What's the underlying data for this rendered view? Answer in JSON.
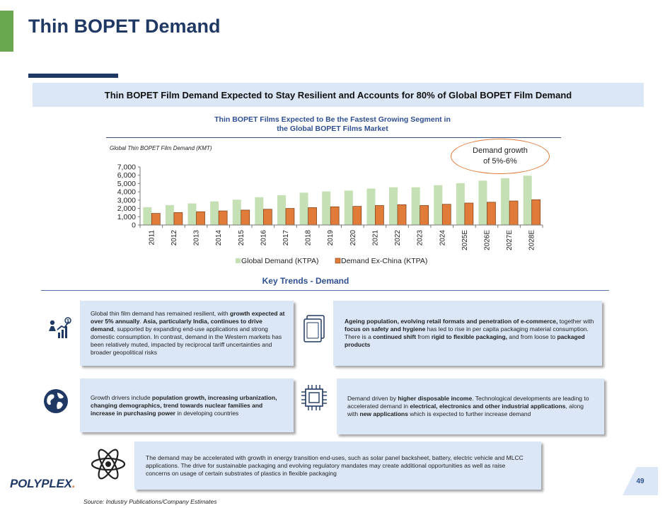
{
  "page": {
    "title": "Thin BOPET Demand",
    "banner": "Thin BOPET Film Demand Expected to Stay Resilient and Accounts for 80% of Global BOPET Film Demand",
    "logo_main": "POLYPLEX",
    "logo_dot": ".",
    "page_number": "49",
    "source": "Source: Industry Publications/Company Estimates"
  },
  "colors": {
    "title": "#1f3864",
    "accent_green": "#6aa84f",
    "banner_bg": "#dbe7f6",
    "global_series": "#c5e0b4",
    "exchina_series": "#e07b39"
  },
  "chart_data": {
    "type": "bar",
    "title_line1": "Thin BOPET Films Expected to Be the Fastest Growing Segment in",
    "title_line2": "the Global BOPET Films Market",
    "ylabel": "Global Thin BOPET Film Demand (KMT)",
    "ylim": [
      0,
      7000
    ],
    "yticks": [
      "7,000",
      "6,000",
      "5,000",
      "4,000",
      "3,000",
      "2,000",
      "1,000",
      "0"
    ],
    "ytick_values": [
      7000,
      6000,
      5000,
      4000,
      3000,
      2000,
      1000,
      0
    ],
    "categories": [
      "2011",
      "2012",
      "2013",
      "2014",
      "2015",
      "2016",
      "2017",
      "2018",
      "2019",
      "2020",
      "2021",
      "2022",
      "2023",
      "2024",
      "2025E",
      "2026E",
      "2027E",
      "2028E"
    ],
    "series": [
      {
        "name": "Global Demand (KTPA)",
        "color": "#c5e0b4",
        "values": [
          2150,
          2400,
          2600,
          2850,
          3050,
          3350,
          3600,
          3900,
          4050,
          4150,
          4400,
          4550,
          4550,
          4800,
          5050,
          5350,
          5650,
          5950
        ]
      },
      {
        "name": "Demand Ex-China (KTPA)",
        "color": "#e07b39",
        "values": [
          1400,
          1500,
          1600,
          1700,
          1800,
          1900,
          2000,
          2100,
          2200,
          2250,
          2350,
          2450,
          2350,
          2500,
          2650,
          2750,
          2900,
          3050
        ]
      }
    ],
    "callout_line1": "Demand growth",
    "callout_line2": "of 5%-6%"
  },
  "trends": {
    "title": "Key Trends - Demand",
    "box1": {
      "p1": "Global thin film demand has remained resilient, with ",
      "b1": "growth expected at over 5% annually",
      "p2": ". ",
      "b2": "Asia, particularly India, continues to drive demand",
      "p3": ", supported by expanding end-use applications and strong domestic consumption. In contrast, demand in the Western markets has been relatively muted, impacted by reciprocal tariff uncertainties and broader geopolitical risks"
    },
    "box2": {
      "b1": "Ageing population, evolving retail formats and penetration of e-commerce,",
      "p1": " together with ",
      "b2": "focus on safety and hygiene",
      "p2": " has led to rise in per capita packaging material consumption. There is a ",
      "b3": "continued shift",
      "p3": " from ",
      "b4": "rigid to flexible packaging,",
      "p4": " and from loose to ",
      "b5": "packaged products"
    },
    "box3": {
      "p1": "Growth drivers include ",
      "b1": "population growth, increasing urbanization, changing demographics, trend towards nuclear families and increase in purchasing power",
      "p2": " in developing countries"
    },
    "box4": {
      "p1": "Demand driven by ",
      "b1": "higher disposable income",
      "p2": ". Technological developments are leading to accelerated demand in ",
      "b2": "electrical, electronics and other industrial applications",
      "p3": ", along with ",
      "b3": "new applications",
      "p4": " which is expected to further increase demand"
    },
    "box5": {
      "p1": "The demand may be accelerated with growth in energy transition end-uses, such as solar panel backsheet, battery, electric vehicle and MLCC applications. The drive for sustainable packaging and evolving regulatory mandates may create additional opportunities as well as raise concerns on usage of certain substrates of plastics in flexible packaging"
    },
    "icons": [
      "growth-chart-icon",
      "packaging-icon",
      "globe-icon",
      "chip-icon",
      "atom-icon"
    ]
  }
}
